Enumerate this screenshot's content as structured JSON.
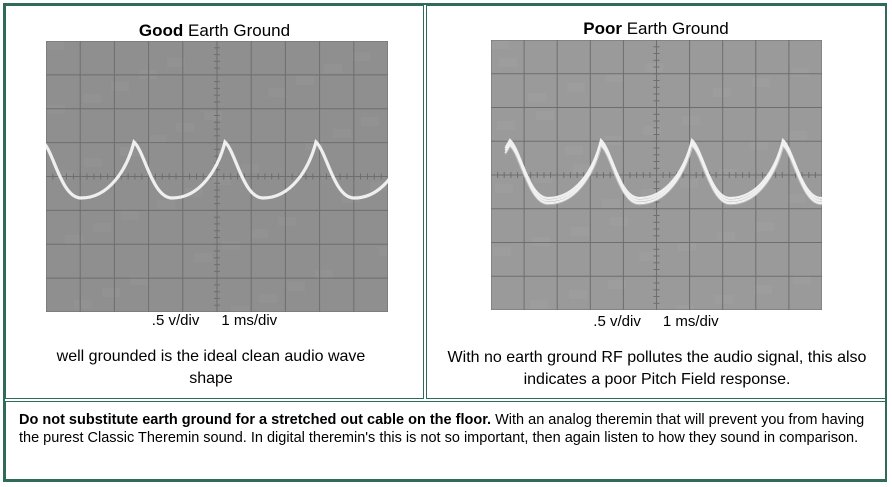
{
  "left": {
    "title_bold": "Good",
    "title_rest": " Earth Ground",
    "scale_volts": ".5 v/div",
    "scale_time": "1 ms/div",
    "caption": "well grounded is the ideal clean audio wave shape"
  },
  "right": {
    "title_bold": "Poor",
    "title_rest": " Earth Ground",
    "scale_volts": ".5 v/div",
    "scale_time": "1 ms/div",
    "caption": "With no earth ground RF pollutes the audio signal, this also indicates a poor Pitch Field response."
  },
  "note": {
    "bold": "Do not substitute earth ground for a stretched out cable on the floor.",
    "text": " With an analog theremin that will prevent you from having the purest Classic Theremin sound. In digital theremin's this is not so important, then again listen to how they sound in comparison."
  },
  "colors": {
    "border": "#2f6b5a",
    "scope_bg_good": "#8f8f8f",
    "scope_bg_poor": "#9a9a9a"
  }
}
